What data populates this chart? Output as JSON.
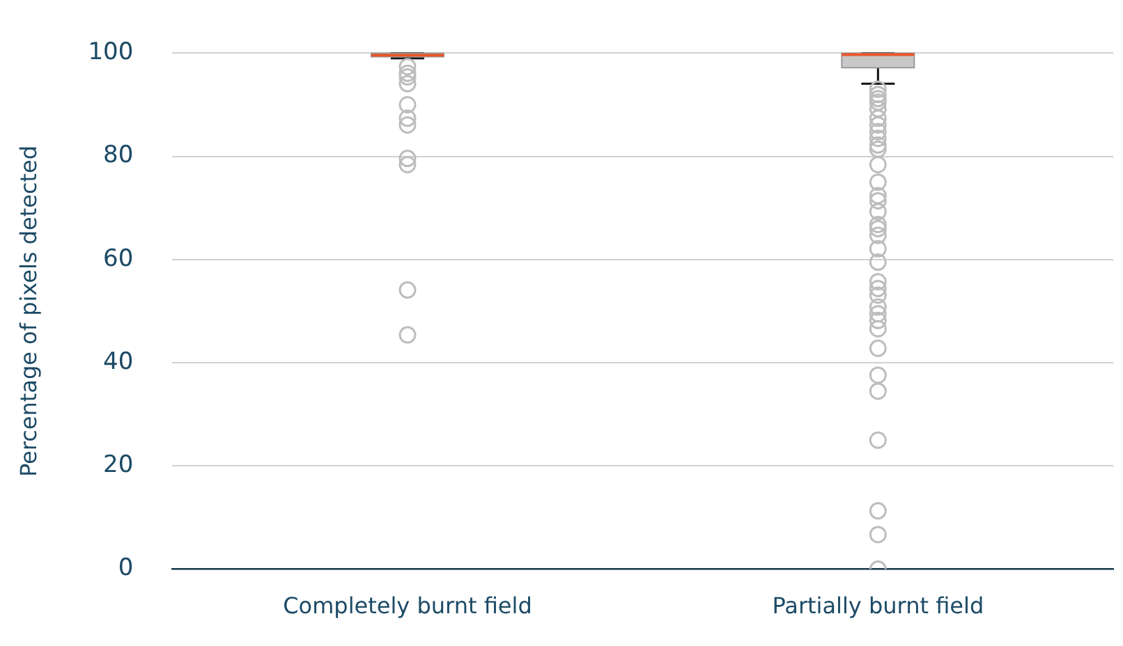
{
  "chart_data": {
    "type": "box",
    "ylabel": "Percentage of pixels detected",
    "categories": [
      "Completely burnt field",
      "Partially burnt field"
    ],
    "series": [
      {
        "color": "#c8c8c8",
        "boxes": [
          {
            "low": 99,
            "q1": 99.3,
            "median": 99.6,
            "q3": 100,
            "high": 100,
            "outliers": [
              97.4,
              96.1,
              95.4,
              94.1,
              90.0,
              87.4,
              86.1,
              79.6,
              78.4,
              54.1,
              45.4
            ]
          },
          {
            "low": 94.1,
            "q1": 97.2,
            "median": 99.7,
            "q3": 100,
            "high": 100,
            "outliers": [
              93.0,
              92.0,
              91.2,
              90.5,
              89.2,
              87.4,
              86.1,
              84.8,
              83.5,
              82.2,
              81.4,
              78.4,
              75.0,
              72.4,
              71.4,
              69.3,
              66.8,
              66.0,
              64.7,
              62.1,
              59.5,
              55.7,
              54.4,
              53.1,
              50.8,
              49.5,
              48.2,
              46.6,
              42.8,
              37.6,
              34.5,
              25.0,
              11.3,
              6.7,
              0
            ]
          }
        ]
      }
    ],
    "ylim": [
      0,
      100
    ],
    "yticks": [
      0,
      20,
      40,
      60,
      80,
      100
    ],
    "grid": "y"
  }
}
